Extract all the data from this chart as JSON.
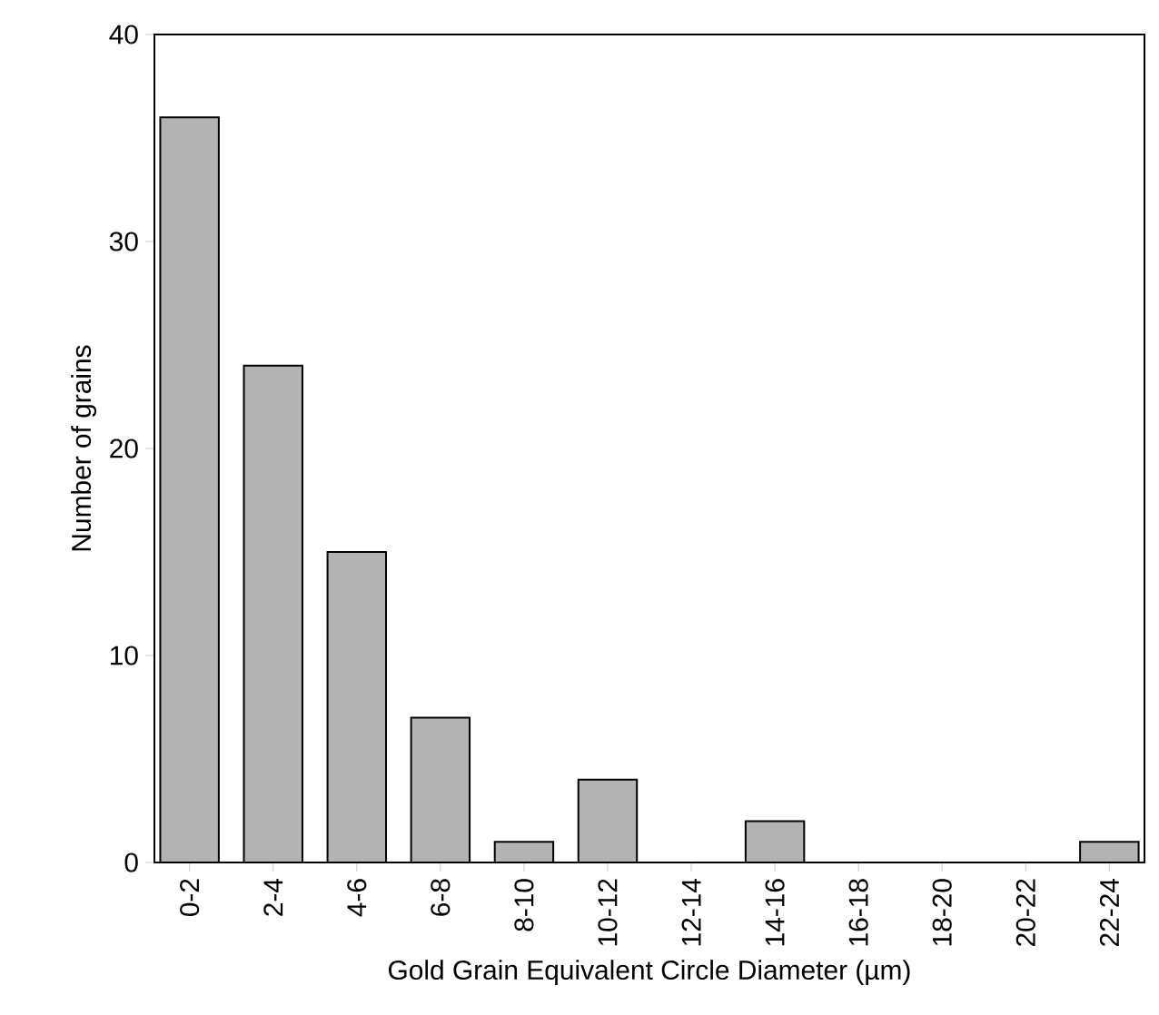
{
  "chart_data": {
    "type": "bar",
    "xlabel": "Gold Grain Equivalent Circle Diameter (µm)",
    "ylabel": "Number of grains",
    "categories": [
      "0-2",
      "2-4",
      "4-6",
      "6-8",
      "8-10",
      "10-12",
      "12-14",
      "14-16",
      "16-18",
      "18-20",
      "20-22",
      "22-24"
    ],
    "values": [
      36,
      24,
      15,
      7,
      1,
      4,
      0,
      2,
      0,
      0,
      0,
      1
    ],
    "color": "#b3b3b3",
    "ylim": [
      0,
      40
    ],
    "yticks": [
      0,
      10,
      20,
      30,
      40
    ]
  }
}
